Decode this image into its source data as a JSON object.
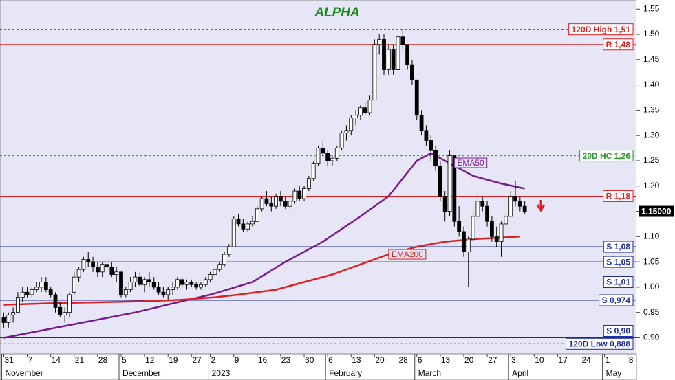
{
  "chart_data": {
    "type": "candlestick",
    "title": "ALPHA",
    "ylim": [
      0.868,
      1.568
    ],
    "yticks": [
      {
        "value": 0.9,
        "label": "0.90"
      },
      0.95,
      {
        "value": 1,
        "label": "1.00"
      },
      1.05,
      {
        "value": 1.1,
        "label": "1.10"
      },
      1.15,
      {
        "value": 1.2,
        "label": "1.20"
      },
      1.25,
      {
        "value": 1.3,
        "label": "1.30"
      },
      1.35,
      {
        "value": 1.4,
        "label": "1.40"
      },
      1.45,
      {
        "value": 1.5,
        "label": "1.50"
      },
      1.55
    ],
    "xlim": [
      -0.8,
      134.8
    ],
    "xticks": [
      {
        "value": 0,
        "label": "31"
      },
      {
        "value": 5,
        "label": "7"
      },
      {
        "value": 10,
        "label": "14"
      },
      {
        "value": 15,
        "label": "21"
      },
      {
        "value": 20,
        "label": "28"
      },
      {
        "value": 25,
        "label": "5"
      },
      {
        "value": 30,
        "label": "12"
      },
      {
        "value": 35,
        "label": "19"
      },
      {
        "value": 40,
        "label": "27"
      },
      {
        "value": 44,
        "label": "2"
      },
      {
        "value": 49,
        "label": "9"
      },
      {
        "value": 54,
        "label": "16"
      },
      {
        "value": 59,
        "label": "23"
      },
      {
        "value": 64,
        "label": "30"
      },
      {
        "value": 69,
        "label": "6"
      },
      {
        "value": 74,
        "label": "13"
      },
      {
        "value": 79,
        "label": "20"
      },
      {
        "value": 84,
        "label": "28"
      },
      {
        "value": 88,
        "label": "6"
      },
      {
        "value": 93,
        "label": "13"
      },
      {
        "value": 98,
        "label": "20"
      },
      {
        "value": 103,
        "label": "27"
      },
      {
        "value": 108,
        "label": "3"
      },
      {
        "value": 113,
        "label": "10"
      },
      {
        "value": 118,
        "label": "17"
      },
      {
        "value": 123,
        "label": "24"
      },
      {
        "value": 128,
        "label": "1"
      },
      {
        "value": 133,
        "label": "8"
      }
    ],
    "month_ticks": [
      {
        "value": 0,
        "label": "November"
      },
      {
        "value": 25,
        "label": "December"
      },
      {
        "value": 44,
        "label": "2023"
      },
      {
        "value": 69,
        "label": "February"
      },
      {
        "value": 88,
        "label": "March"
      },
      {
        "value": 108,
        "label": "April"
      },
      {
        "value": 128,
        "label": "May"
      }
    ],
    "ohlc": [
      [
        0.94,
        0.95,
        0.92,
        0.93
      ],
      [
        0.93,
        0.95,
        0.92,
        0.945
      ],
      [
        0.945,
        0.96,
        0.93,
        0.95
      ],
      [
        0.95,
        0.99,
        0.95,
        0.98
      ],
      [
        0.98,
        1.0,
        0.97,
        0.99
      ],
      [
        0.99,
        1.0,
        0.98,
        0.985
      ],
      [
        0.985,
        1.0,
        0.98,
        0.995
      ],
      [
        0.995,
        1.01,
        0.99,
        1.0
      ],
      [
        1.0,
        1.02,
        0.99,
        1.01
      ],
      [
        1.01,
        1.02,
        0.99,
        0.995
      ],
      [
        0.995,
        1.0,
        0.98,
        0.985
      ],
      [
        0.985,
        0.99,
        0.95,
        0.96
      ],
      [
        0.96,
        0.97,
        0.94,
        0.945
      ],
      [
        0.945,
        0.96,
        0.93,
        0.95
      ],
      [
        0.95,
        0.99,
        0.94,
        0.985
      ],
      [
        0.99,
        1.03,
        0.985,
        1.02
      ],
      [
        1.02,
        1.04,
        1.01,
        1.035
      ],
      [
        1.035,
        1.06,
        1.03,
        1.055
      ],
      [
        1.055,
        1.07,
        1.04,
        1.05
      ],
      [
        1.05,
        1.06,
        1.03,
        1.04
      ],
      [
        1.04,
        1.05,
        1.02,
        1.03
      ],
      [
        1.03,
        1.05,
        1.02,
        1.045
      ],
      [
        1.045,
        1.06,
        1.03,
        1.04
      ],
      [
        1.04,
        1.05,
        1.02,
        1.025
      ],
      [
        1.025,
        1.04,
        1.01,
        1.03
      ],
      [
        1.03,
        1.03,
        0.98,
        0.985
      ],
      [
        0.985,
        1.0,
        0.98,
        0.995
      ],
      [
        0.995,
        1.02,
        0.99,
        1.01
      ],
      [
        1.01,
        1.03,
        1.0,
        1.02
      ],
      [
        1.02,
        1.03,
        1.0,
        1.005
      ],
      [
        1.005,
        1.02,
        0.99,
        1.015
      ],
      [
        1.015,
        1.03,
        1.0,
        1.01
      ],
      [
        1.01,
        1.02,
        0.995,
        1.0
      ],
      [
        1.0,
        1.01,
        0.985,
        0.99
      ],
      [
        0.99,
        1.0,
        0.98,
        0.985
      ],
      [
        0.985,
        1.0,
        0.975,
        0.995
      ],
      [
        0.995,
        1.01,
        0.985,
        1.0
      ],
      [
        1.0,
        1.02,
        0.995,
        1.015
      ],
      [
        1.015,
        1.02,
        1.0,
        1.005
      ],
      [
        1.005,
        1.015,
        0.995,
        1.01
      ],
      [
        1.01,
        1.015,
        1.0,
        1.005
      ],
      [
        1.005,
        1.01,
        0.995,
        1.0
      ],
      [
        1.0,
        1.01,
        0.995,
        1.005
      ],
      [
        1.005,
        1.02,
        1.0,
        1.015
      ],
      [
        1.015,
        1.03,
        1.01,
        1.025
      ],
      [
        1.025,
        1.04,
        1.02,
        1.035
      ],
      [
        1.035,
        1.05,
        1.03,
        1.045
      ],
      [
        1.045,
        1.07,
        1.04,
        1.065
      ],
      [
        1.065,
        1.085,
        1.06,
        1.08
      ],
      [
        1.08,
        1.14,
        1.08,
        1.135
      ],
      [
        1.135,
        1.145,
        1.12,
        1.125
      ],
      [
        1.125,
        1.135,
        1.11,
        1.115
      ],
      [
        1.115,
        1.13,
        1.11,
        1.125
      ],
      [
        1.125,
        1.14,
        1.12,
        1.13
      ],
      [
        1.13,
        1.16,
        1.13,
        1.155
      ],
      [
        1.155,
        1.18,
        1.15,
        1.175
      ],
      [
        1.175,
        1.19,
        1.16,
        1.165
      ],
      [
        1.165,
        1.18,
        1.15,
        1.16
      ],
      [
        1.16,
        1.185,
        1.155,
        1.18
      ],
      [
        1.18,
        1.19,
        1.16,
        1.17
      ],
      [
        1.17,
        1.18,
        1.155,
        1.16
      ],
      [
        1.16,
        1.175,
        1.15,
        1.17
      ],
      [
        1.17,
        1.195,
        1.165,
        1.19
      ],
      [
        1.19,
        1.2,
        1.17,
        1.175
      ],
      [
        1.175,
        1.2,
        1.17,
        1.195
      ],
      [
        1.195,
        1.22,
        1.19,
        1.215
      ],
      [
        1.215,
        1.25,
        1.21,
        1.245
      ],
      [
        1.245,
        1.28,
        1.24,
        1.275
      ],
      [
        1.275,
        1.29,
        1.26,
        1.265
      ],
      [
        1.265,
        1.27,
        1.24,
        1.25
      ],
      [
        1.25,
        1.26,
        1.24,
        1.255
      ],
      [
        1.255,
        1.28,
        1.25,
        1.275
      ],
      [
        1.275,
        1.31,
        1.27,
        1.305
      ],
      [
        1.305,
        1.32,
        1.29,
        1.31
      ],
      [
        1.31,
        1.34,
        1.3,
        1.335
      ],
      [
        1.335,
        1.35,
        1.32,
        1.34
      ],
      [
        1.34,
        1.36,
        1.33,
        1.355
      ],
      [
        1.355,
        1.365,
        1.34,
        1.345
      ],
      [
        1.345,
        1.38,
        1.34,
        1.37
      ],
      [
        1.37,
        1.49,
        1.37,
        1.48
      ],
      [
        1.48,
        1.5,
        1.46,
        1.49
      ],
      [
        1.49,
        1.5,
        1.42,
        1.43
      ],
      [
        1.43,
        1.48,
        1.42,
        1.47
      ],
      [
        1.47,
        1.48,
        1.42,
        1.43
      ],
      [
        1.43,
        1.5,
        1.43,
        1.495
      ],
      [
        1.495,
        1.51,
        1.47,
        1.48
      ],
      [
        1.48,
        1.48,
        1.43,
        1.44
      ],
      [
        1.44,
        1.45,
        1.4,
        1.41
      ],
      [
        1.41,
        1.41,
        1.33,
        1.34
      ],
      [
        1.34,
        1.35,
        1.3,
        1.31
      ],
      [
        1.31,
        1.32,
        1.28,
        1.29
      ],
      [
        1.29,
        1.3,
        1.25,
        1.27
      ],
      [
        1.27,
        1.28,
        1.23,
        1.24
      ],
      [
        1.24,
        1.25,
        1.17,
        1.18
      ],
      [
        1.18,
        1.19,
        1.13,
        1.15
      ],
      [
        1.15,
        1.27,
        1.14,
        1.26
      ],
      [
        1.26,
        1.26,
        1.12,
        1.13
      ],
      [
        1.13,
        1.16,
        1.1,
        1.11
      ],
      [
        1.11,
        1.12,
        1.06,
        1.07
      ],
      [
        1.07,
        1.1,
        1.0,
        1.095
      ],
      [
        1.095,
        1.15,
        1.09,
        1.14
      ],
      [
        1.14,
        1.19,
        1.13,
        1.17
      ],
      [
        1.17,
        1.18,
        1.15,
        1.16
      ],
      [
        1.16,
        1.17,
        1.12,
        1.13
      ],
      [
        1.13,
        1.14,
        1.09,
        1.1
      ],
      [
        1.1,
        1.12,
        1.08,
        1.09
      ],
      [
        1.09,
        1.13,
        1.06,
        1.125
      ],
      [
        1.125,
        1.145,
        1.12,
        1.14
      ],
      [
        1.14,
        1.19,
        1.14,
        1.18
      ],
      [
        1.18,
        1.21,
        1.16,
        1.17
      ],
      [
        1.17,
        1.18,
        1.15,
        1.16
      ],
      [
        1.16,
        1.17,
        1.145,
        1.15
      ]
    ],
    "series": [
      {
        "name": "EMA50",
        "color": "#7a1a8a",
        "x": [
          0,
          14,
          28,
          37,
          44,
          53,
          60,
          68,
          76,
          82,
          88,
          91,
          94,
          100,
          106,
          111
        ],
        "values": [
          0.9,
          0.925,
          0.95,
          0.97,
          0.985,
          1.01,
          1.05,
          1.09,
          1.14,
          1.18,
          1.25,
          1.265,
          1.25,
          1.22,
          1.205,
          1.195
        ]
      },
      {
        "name": "EMA200",
        "color": "#e02020",
        "x": [
          0,
          10,
          20,
          30,
          38,
          45,
          50,
          58,
          64,
          70,
          76,
          82,
          88,
          94,
          100,
          110
        ],
        "values": [
          0.965,
          0.968,
          0.97,
          0.972,
          0.975,
          0.98,
          0.985,
          0.995,
          1.01,
          1.025,
          1.045,
          1.065,
          1.08,
          1.09,
          1.095,
          1.1
        ]
      }
    ],
    "levels": [
      {
        "label": "120D High 1,51",
        "value": 1.51,
        "color": "#e02020",
        "dashed": true
      },
      {
        "label": "R 1,48",
        "value": 1.48,
        "color": "#e02020",
        "dashed": false
      },
      {
        "label": "20D HC 1,26",
        "value": 1.26,
        "color": "#2a9a2a",
        "dashed": true
      },
      {
        "label": "R 1,18",
        "value": 1.18,
        "color": "#e02020",
        "dashed": false
      },
      {
        "label": "S 1,08",
        "value": 1.08,
        "color": "#1a2aa0",
        "dashed": false
      },
      {
        "label": "S 1,05",
        "value": 1.05,
        "color": "#1a2aa0",
        "dashed": false
      },
      {
        "label": "S 1,01",
        "value": 1.01,
        "color": "#1a2aa0",
        "dashed": false
      },
      {
        "label": "S 0,974",
        "value": 0.974,
        "color": "#1a2aa0",
        "dashed": false
      },
      {
        "label": "S 0,90",
        "value": 0.9,
        "color": "#1a2aa0",
        "dashed": false
      },
      {
        "label": "120D Low 0,888",
        "value": 0.888,
        "color": "#1a2aa0",
        "dashed": true
      }
    ],
    "last_price": {
      "value": 1.15,
      "label": "1.15000"
    }
  }
}
